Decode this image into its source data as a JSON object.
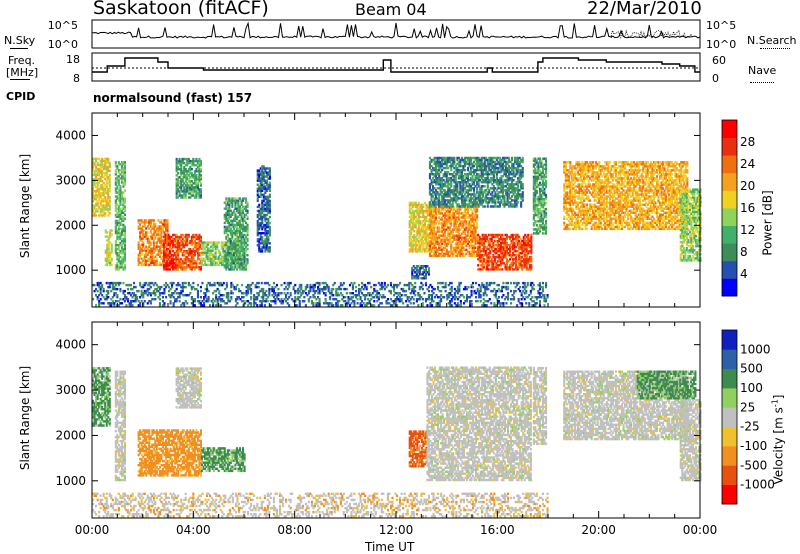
{
  "header": {
    "station": "Saskatoon (fitACF)",
    "beam": "Beam 04",
    "date": "22/Mar/2010"
  },
  "noise_panel": {
    "left_label": "N.Sky",
    "right_label": "N.Search",
    "tick_top": "10^5",
    "tick_bottom": "10^0"
  },
  "freq_panel": {
    "left_label_1": "Freq.",
    "left_label_2": "[MHz]",
    "right_label": "Nave",
    "left_ticks": [
      "18",
      "8"
    ],
    "right_ticks": [
      "60",
      "0"
    ]
  },
  "cpid": {
    "label": "CPID",
    "value": "normalsound (fast) 157"
  },
  "colors": {
    "power": [
      "#0000ff",
      "#2650b0",
      "#3d8c5a",
      "#43b06a",
      "#8ed45a",
      "#f0d020",
      "#f5a020",
      "#f07010",
      "#e83010",
      "#ff0000"
    ],
    "velocity": [
      "#1020c0",
      "#2e60a8",
      "#3c8c50",
      "#90d060",
      "#c0c0c0",
      "#f0c030",
      "#f09020",
      "#e85010",
      "#ff0000"
    ]
  },
  "chart_data": [
    {
      "type": "heatmap",
      "title": "",
      "xlabel": "Time UT",
      "ylabel": "Slant Range [km]",
      "xlim": [
        "00:00",
        "24:00"
      ],
      "ylim": [
        180,
        4500
      ],
      "x_ticks": [
        "00:00",
        "04:00",
        "08:00",
        "12:00",
        "16:00",
        "20:00",
        "00:00"
      ],
      "y_ticks": [
        "1000",
        "2000",
        "3000",
        "4000"
      ],
      "colorbar_label": "Power [dB]",
      "colorbar_ticks": [
        "4",
        "8",
        "12",
        "16",
        "20",
        "24",
        "28"
      ],
      "scatter_regions": [
        {
          "t0": 0.0,
          "t1": 0.7,
          "r0": 2200,
          "r1": 3500,
          "val": 18
        },
        {
          "t0": 0.5,
          "t1": 0.8,
          "r0": 1100,
          "r1": 1900,
          "val": 16
        },
        {
          "t0": 0.9,
          "t1": 1.3,
          "r0": 1000,
          "r1": 3400,
          "val": 12
        },
        {
          "t0": 1.8,
          "t1": 3.0,
          "r0": 1100,
          "r1": 2100,
          "val": 22
        },
        {
          "t0": 2.8,
          "t1": 3.4,
          "r0": 1000,
          "r1": 1800,
          "val": 28
        },
        {
          "t0": 3.3,
          "t1": 4.3,
          "r0": 1000,
          "r1": 1800,
          "val": 25
        },
        {
          "t0": 4.3,
          "t1": 6.0,
          "r0": 1100,
          "r1": 1600,
          "val": 14
        },
        {
          "t0": 3.3,
          "t1": 4.3,
          "r0": 2600,
          "r1": 3500,
          "val": 10
        },
        {
          "t0": 5.2,
          "t1": 6.1,
          "r0": 1000,
          "r1": 2600,
          "val": 10
        },
        {
          "t0": 6.5,
          "t1": 7.0,
          "r0": 1400,
          "r1": 3300,
          "val": 6
        },
        {
          "t0": 12.5,
          "t1": 13.5,
          "r0": 1400,
          "r1": 2500,
          "val": 18
        },
        {
          "t0": 13.3,
          "t1": 15.2,
          "r0": 1300,
          "r1": 2400,
          "val": 22
        },
        {
          "t0": 15.2,
          "t1": 17.3,
          "r0": 1000,
          "r1": 1800,
          "val": 26
        },
        {
          "t0": 13.3,
          "t1": 17.0,
          "r0": 2400,
          "r1": 3500,
          "val": 8
        },
        {
          "t0": 17.4,
          "t1": 17.9,
          "r0": 1800,
          "r1": 3500,
          "val": 10
        },
        {
          "t0": 18.6,
          "t1": 23.5,
          "r0": 1900,
          "r1": 3400,
          "val": 20
        },
        {
          "t0": 23.2,
          "t1": 24.0,
          "r0": 1200,
          "r1": 2800,
          "val": 14
        },
        {
          "t0": 12.6,
          "t1": 13.3,
          "r0": 800,
          "r1": 1100,
          "val": 6
        }
      ],
      "ground_scatter": {
        "t0": 0.0,
        "t1": 18.0,
        "r0": 200,
        "r1": 700,
        "val": 6
      }
    },
    {
      "type": "heatmap",
      "title": "",
      "xlabel": "Time UT",
      "ylabel": "Slant Range [km]",
      "xlim": [
        "00:00",
        "24:00"
      ],
      "ylim": [
        180,
        4500
      ],
      "x_ticks": [
        "00:00",
        "04:00",
        "08:00",
        "12:00",
        "16:00",
        "20:00",
        "00:00"
      ],
      "y_ticks": [
        "1000",
        "2000",
        "3000",
        "4000"
      ],
      "colorbar_label": "Velocity [m s^-1]",
      "colorbar_ticks": [
        "1000",
        "500",
        "100",
        "25",
        "-25",
        "-100",
        "-500",
        "-1000"
      ],
      "scatter_regions": [
        {
          "t0": 0.0,
          "t1": 0.7,
          "r0": 2200,
          "r1": 3500,
          "val": 100
        },
        {
          "t0": 0.9,
          "t1": 1.3,
          "r0": 1000,
          "r1": 3400,
          "val": 0
        },
        {
          "t0": 1.8,
          "t1": 4.3,
          "r0": 1100,
          "r1": 2100,
          "val": -150
        },
        {
          "t0": 4.3,
          "t1": 6.0,
          "r0": 1200,
          "r1": 1700,
          "val": 100
        },
        {
          "t0": 3.3,
          "t1": 4.3,
          "r0": 2600,
          "r1": 3500,
          "val": 0
        },
        {
          "t0": 12.5,
          "t1": 13.2,
          "r0": 1300,
          "r1": 2100,
          "val": -400
        },
        {
          "t0": 13.2,
          "t1": 17.3,
          "r0": 1000,
          "r1": 3500,
          "val": 0
        },
        {
          "t0": 17.4,
          "t1": 17.9,
          "r0": 1800,
          "r1": 3500,
          "val": 0
        },
        {
          "t0": 18.6,
          "t1": 23.5,
          "r0": 1900,
          "r1": 3400,
          "val": 0
        },
        {
          "t0": 21.5,
          "t1": 23.8,
          "r0": 2800,
          "r1": 3400,
          "val": 100
        },
        {
          "t0": 23.2,
          "t1": 24.0,
          "r0": 1000,
          "r1": 2800,
          "val": 0
        }
      ],
      "ground_scatter": {
        "t0": 0.0,
        "t1": 18.0,
        "r0": 200,
        "r1": 700,
        "val": -40
      }
    }
  ]
}
